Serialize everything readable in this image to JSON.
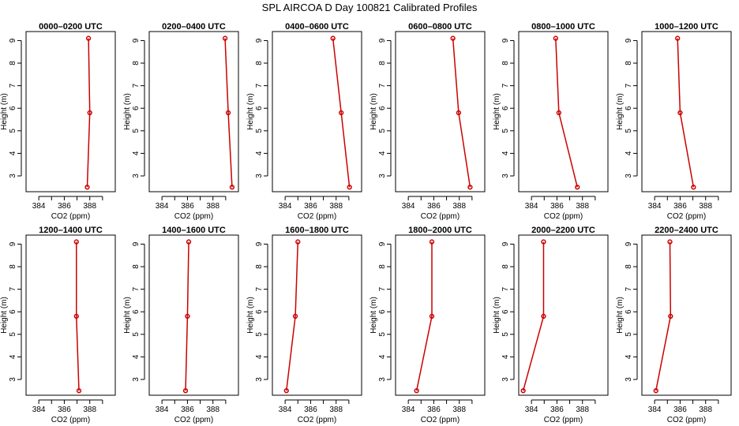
{
  "figure": {
    "title": "SPL AIRCOA D  Day 100821  Calibrated Profiles"
  },
  "chart_data": [
    {
      "type": "line",
      "title": "0000–0200 UTC",
      "xlabel": "CO2 (ppm)",
      "ylabel": "Height (m)",
      "xlim": [
        383,
        390
      ],
      "ylim": [
        2.3,
        9.4
      ],
      "xticks": [
        384,
        385,
        386,
        387,
        388,
        389
      ],
      "xtick_labels": [
        "384",
        "",
        "386",
        "",
        "388",
        ""
      ],
      "yticks": [
        3,
        4,
        5,
        6,
        7,
        8,
        9
      ],
      "grid": false,
      "series": [
        {
          "values": [
            {
              "x": 387.9,
              "y": 9.1
            },
            {
              "x": 388.0,
              "y": 5.8
            },
            {
              "x": 387.8,
              "y": 2.5
            }
          ],
          "color": "#cc0000"
        }
      ]
    },
    {
      "type": "line",
      "title": "0200–0400 UTC",
      "xlabel": "CO2 (ppm)",
      "ylabel": "Height (m)",
      "xlim": [
        383,
        390
      ],
      "ylim": [
        2.3,
        9.4
      ],
      "xticks": [
        384,
        385,
        386,
        387,
        388,
        389
      ],
      "xtick_labels": [
        "384",
        "",
        "386",
        "",
        "388",
        ""
      ],
      "yticks": [
        3,
        4,
        5,
        6,
        7,
        8,
        9
      ],
      "grid": false,
      "series": [
        {
          "values": [
            {
              "x": 388.95,
              "y": 9.1
            },
            {
              "x": 389.2,
              "y": 5.8
            },
            {
              "x": 389.5,
              "y": 2.5
            }
          ],
          "color": "#cc0000"
        }
      ]
    },
    {
      "type": "line",
      "title": "0400–0600 UTC",
      "xlabel": "CO2 (ppm)",
      "ylabel": "Height (m)",
      "xlim": [
        383,
        390
      ],
      "ylim": [
        2.3,
        9.4
      ],
      "xticks": [
        384,
        385,
        386,
        387,
        388,
        389
      ],
      "xtick_labels": [
        "384",
        "",
        "386",
        "",
        "388",
        ""
      ],
      "yticks": [
        3,
        4,
        5,
        6,
        7,
        8,
        9
      ],
      "grid": false,
      "series": [
        {
          "values": [
            {
              "x": 387.75,
              "y": 9.1
            },
            {
              "x": 388.4,
              "y": 5.8
            },
            {
              "x": 389.05,
              "y": 2.5
            }
          ],
          "color": "#cc0000"
        }
      ]
    },
    {
      "type": "line",
      "title": "0600–0800 UTC",
      "xlabel": "CO2 (ppm)",
      "ylabel": "Height (m)",
      "xlim": [
        383,
        390
      ],
      "ylim": [
        2.3,
        9.4
      ],
      "xticks": [
        384,
        385,
        386,
        387,
        388,
        389
      ],
      "xtick_labels": [
        "384",
        "",
        "386",
        "",
        "388",
        ""
      ],
      "yticks": [
        3,
        4,
        5,
        6,
        7,
        8,
        9
      ],
      "grid": false,
      "series": [
        {
          "values": [
            {
              "x": 387.5,
              "y": 9.1
            },
            {
              "x": 387.95,
              "y": 5.8
            },
            {
              "x": 388.85,
              "y": 2.5
            }
          ],
          "color": "#cc0000"
        }
      ]
    },
    {
      "type": "line",
      "title": "0800–1000 UTC",
      "xlabel": "CO2 (ppm)",
      "ylabel": "Height (m)",
      "xlim": [
        383,
        390
      ],
      "ylim": [
        2.3,
        9.4
      ],
      "xticks": [
        384,
        385,
        386,
        387,
        388,
        389
      ],
      "xtick_labels": [
        "384",
        "",
        "386",
        "",
        "388",
        ""
      ],
      "yticks": [
        3,
        4,
        5,
        6,
        7,
        8,
        9
      ],
      "grid": false,
      "series": [
        {
          "values": [
            {
              "x": 385.9,
              "y": 9.1
            },
            {
              "x": 386.15,
              "y": 5.8
            },
            {
              "x": 387.6,
              "y": 2.5
            }
          ],
          "color": "#cc0000"
        }
      ]
    },
    {
      "type": "line",
      "title": "1000–1200 UTC",
      "xlabel": "CO2 (ppm)",
      "ylabel": "Height (m)",
      "xlim": [
        383,
        390
      ],
      "ylim": [
        2.3,
        9.4
      ],
      "xticks": [
        384,
        385,
        386,
        387,
        388,
        389
      ],
      "xtick_labels": [
        "384",
        "",
        "386",
        "",
        "388",
        ""
      ],
      "yticks": [
        3,
        4,
        5,
        6,
        7,
        8,
        9
      ],
      "grid": false,
      "series": [
        {
          "values": [
            {
              "x": 385.8,
              "y": 9.1
            },
            {
              "x": 386.0,
              "y": 5.8
            },
            {
              "x": 387.05,
              "y": 2.5
            }
          ],
          "color": "#cc0000"
        }
      ]
    },
    {
      "type": "line",
      "title": "1200–1400 UTC",
      "xlabel": "CO2 (ppm)",
      "ylabel": "Height (m)",
      "xlim": [
        383,
        390
      ],
      "ylim": [
        2.3,
        9.4
      ],
      "xticks": [
        384,
        385,
        386,
        387,
        388,
        389
      ],
      "xtick_labels": [
        "384",
        "",
        "386",
        "",
        "388",
        ""
      ],
      "yticks": [
        3,
        4,
        5,
        6,
        7,
        8,
        9
      ],
      "grid": false,
      "series": [
        {
          "values": [
            {
              "x": 386.95,
              "y": 9.1
            },
            {
              "x": 386.95,
              "y": 5.8
            },
            {
              "x": 387.15,
              "y": 2.5
            }
          ],
          "color": "#cc0000"
        }
      ]
    },
    {
      "type": "line",
      "title": "1400–1600 UTC",
      "xlabel": "CO2 (ppm)",
      "ylabel": "Height (m)",
      "xlim": [
        383,
        390
      ],
      "ylim": [
        2.3,
        9.4
      ],
      "xticks": [
        384,
        385,
        386,
        387,
        388,
        389
      ],
      "xtick_labels": [
        "384",
        "",
        "386",
        "",
        "388",
        ""
      ],
      "yticks": [
        3,
        4,
        5,
        6,
        7,
        8,
        9
      ],
      "grid": false,
      "series": [
        {
          "values": [
            {
              "x": 386.1,
              "y": 9.1
            },
            {
              "x": 386.0,
              "y": 5.8
            },
            {
              "x": 385.85,
              "y": 2.5
            }
          ],
          "color": "#cc0000"
        }
      ]
    },
    {
      "type": "line",
      "title": "1600–1800 UTC",
      "xlabel": "CO2 (ppm)",
      "ylabel": "Height (m)",
      "xlim": [
        383,
        390
      ],
      "ylim": [
        2.3,
        9.4
      ],
      "xticks": [
        384,
        385,
        386,
        387,
        388,
        389
      ],
      "xtick_labels": [
        "384",
        "",
        "386",
        "",
        "388",
        ""
      ],
      "yticks": [
        3,
        4,
        5,
        6,
        7,
        8,
        9
      ],
      "grid": false,
      "series": [
        {
          "values": [
            {
              "x": 385.0,
              "y": 9.1
            },
            {
              "x": 384.8,
              "y": 5.8
            },
            {
              "x": 384.1,
              "y": 2.5
            }
          ],
          "color": "#cc0000"
        }
      ]
    },
    {
      "type": "line",
      "title": "1800–2000 UTC",
      "xlabel": "CO2 (ppm)",
      "ylabel": "Height (m)",
      "xlim": [
        383,
        390
      ],
      "ylim": [
        2.3,
        9.4
      ],
      "xticks": [
        384,
        385,
        386,
        387,
        388,
        389
      ],
      "xtick_labels": [
        "384",
        "",
        "386",
        "",
        "388",
        ""
      ],
      "yticks": [
        3,
        4,
        5,
        6,
        7,
        8,
        9
      ],
      "grid": false,
      "series": [
        {
          "values": [
            {
              "x": 385.85,
              "y": 9.1
            },
            {
              "x": 385.85,
              "y": 5.8
            },
            {
              "x": 384.65,
              "y": 2.5
            }
          ],
          "color": "#cc0000"
        }
      ]
    },
    {
      "type": "line",
      "title": "2000–2200 UTC",
      "xlabel": "CO2 (ppm)",
      "ylabel": "Height (m)",
      "xlim": [
        383,
        390
      ],
      "ylim": [
        2.3,
        9.4
      ],
      "xticks": [
        384,
        385,
        386,
        387,
        388,
        389
      ],
      "xtick_labels": [
        "384",
        "",
        "386",
        "",
        "388",
        ""
      ],
      "yticks": [
        3,
        4,
        5,
        6,
        7,
        8,
        9
      ],
      "grid": false,
      "series": [
        {
          "values": [
            {
              "x": 384.95,
              "y": 9.1
            },
            {
              "x": 384.95,
              "y": 5.8
            },
            {
              "x": 383.35,
              "y": 2.5
            }
          ],
          "color": "#cc0000"
        }
      ]
    },
    {
      "type": "line",
      "title": "2200–2400 UTC",
      "xlabel": "CO2 (ppm)",
      "ylabel": "Height (m)",
      "xlim": [
        383,
        390
      ],
      "ylim": [
        2.3,
        9.4
      ],
      "xticks": [
        384,
        385,
        386,
        387,
        388,
        389
      ],
      "xtick_labels": [
        "384",
        "",
        "386",
        "",
        "388",
        ""
      ],
      "yticks": [
        3,
        4,
        5,
        6,
        7,
        8,
        9
      ],
      "grid": false,
      "series": [
        {
          "values": [
            {
              "x": 385.2,
              "y": 9.1
            },
            {
              "x": 385.25,
              "y": 5.8
            },
            {
              "x": 384.1,
              "y": 2.5
            }
          ],
          "color": "#cc0000"
        }
      ]
    }
  ]
}
